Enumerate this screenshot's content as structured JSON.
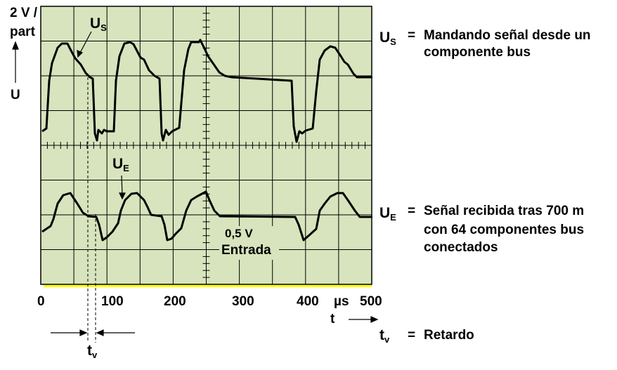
{
  "scale": {
    "line1": "2 V /",
    "line2": "part",
    "axis": "U"
  },
  "labels": {
    "us": "U",
    "us_sub": "S",
    "ue": "U",
    "ue_sub": "E",
    "ue_scale": "0,5 V",
    "ue_input": "Entrada"
  },
  "x_ticks": [
    "0",
    "100",
    "200",
    "300",
    "400",
    "500"
  ],
  "x_unit": "µs",
  "x_axis": "t",
  "delay": {
    "t": "t",
    "sub": "v"
  },
  "legend": [
    {
      "sym": "U",
      "sub": "S",
      "eq": "=",
      "line1": "Mandando señal desde un",
      "line2": "componente bus"
    },
    {
      "sym": "U",
      "sub": "E",
      "eq": "=",
      "line1": "Señal recibida tras 700 m",
      "line2": "con 64 componentes bus",
      "line3": "conectados"
    },
    {
      "sym": "t",
      "sub": "v",
      "eq": "=",
      "line1": "Retardo"
    }
  ],
  "colors": {
    "screen": "#d7e4bd",
    "baseline": "#ffff00"
  }
}
